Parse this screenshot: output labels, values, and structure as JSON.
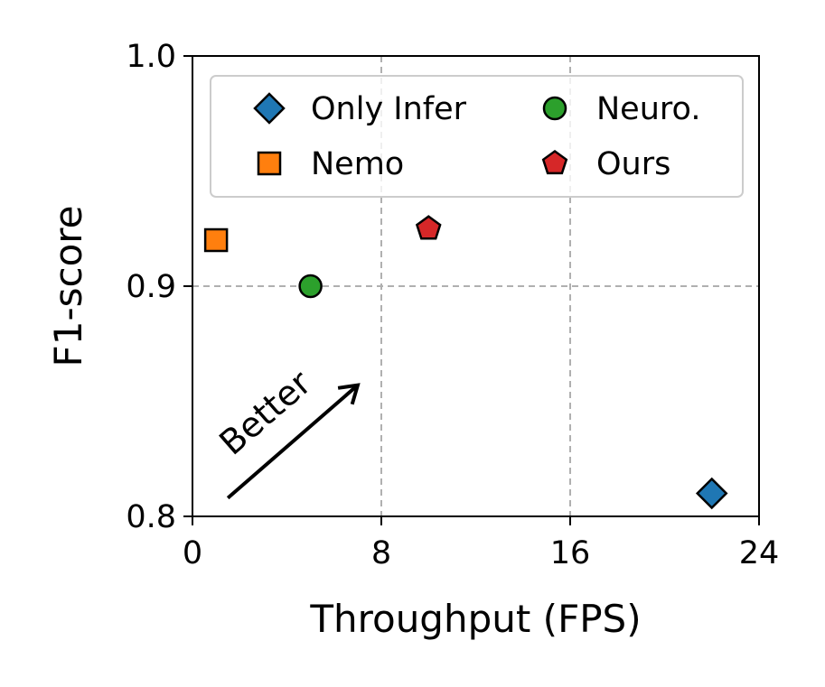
{
  "chart_data": {
    "type": "scatter",
    "xlabel": "Throughput (FPS)",
    "ylabel": "F1-score",
    "xlim": [
      0,
      24
    ],
    "ylim": [
      0.8,
      1.0
    ],
    "xticks": [
      0,
      8,
      16,
      24
    ],
    "xtick_labels": [
      "0",
      "8",
      "16",
      "24"
    ],
    "yticks": [
      0.8,
      0.9,
      1.0
    ],
    "ytick_labels": [
      "0.8",
      "0.9",
      "1.0"
    ],
    "grid": "dashed at 8, 16 (x) and 0.9 (y)",
    "legend_position": "upper",
    "series": [
      {
        "name": "Only Infer",
        "marker": "diamond",
        "color": "#1f77b4",
        "x": 22,
        "y": 0.81
      },
      {
        "name": "Nemo",
        "marker": "square",
        "color": "#ff7f0e",
        "x": 1,
        "y": 0.92
      },
      {
        "name": "Neuro.",
        "marker": "circle",
        "color": "#2ca02c",
        "x": 5,
        "y": 0.9
      },
      {
        "name": "Ours",
        "marker": "pentagon",
        "color": "#d62728",
        "x": 10,
        "y": 0.925
      }
    ],
    "annotation": {
      "text": "Better",
      "arrow_from": [
        1.5,
        0.808
      ],
      "arrow_to": [
        7,
        0.857
      ]
    }
  }
}
